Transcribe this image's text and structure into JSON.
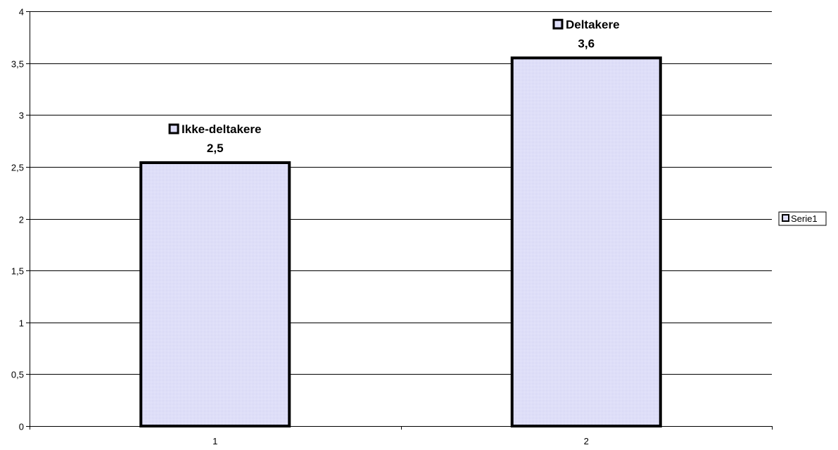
{
  "chart_data": {
    "type": "bar",
    "categories": [
      "1",
      "2"
    ],
    "series": [
      {
        "name": "Serie1",
        "values": [
          2.54,
          3.55
        ],
        "value_labels": [
          "2,5",
          "3,6"
        ],
        "point_labels": [
          "Ikke-deltakere",
          "Deltakere"
        ]
      }
    ],
    "title": "",
    "xlabel": "",
    "ylabel": "",
    "ylim": [
      0,
      4
    ],
    "yticks": [
      0,
      0.5,
      1,
      1.5,
      2,
      2.5,
      3,
      3.5,
      4
    ],
    "ytick_labels": [
      "0",
      "0,5",
      "1",
      "1,5",
      "2",
      "2,5",
      "3",
      "3,5",
      "4"
    ],
    "grid": true,
    "legend_position": "right",
    "colors": {
      "bar_fill": "#dcdcfa",
      "bar_stroke": "#000000",
      "grid": "#000000"
    }
  }
}
